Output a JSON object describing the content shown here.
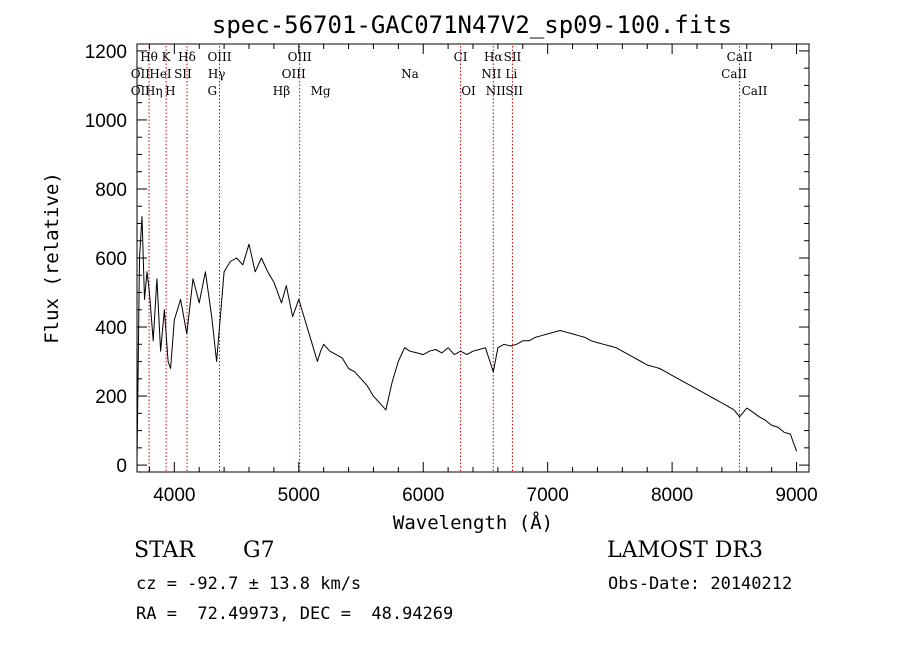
{
  "chart_data": {
    "type": "line",
    "title": "spec-56701-GAC071N47V2_sp09-100.fits",
    "xlabel": "Wavelength (Å)",
    "ylabel": "Flux (relative)",
    "xlim": [
      3700,
      9100
    ],
    "ylim": [
      -20,
      1220
    ],
    "xticks": [
      4000,
      5000,
      6000,
      7000,
      8000,
      9000
    ],
    "xtick_labels": [
      "4000",
      "5000",
      "6000",
      "7000",
      "8000",
      "9000"
    ],
    "yticks": [
      0,
      200,
      400,
      600,
      800,
      1000,
      1200
    ],
    "ytick_labels": [
      "0",
      "200",
      "400",
      "600",
      "800",
      "1000",
      "1200"
    ],
    "grid": false,
    "series": [
      {
        "name": "spectrum",
        "x": [
          3700,
          3720,
          3740,
          3760,
          3780,
          3800,
          3830,
          3860,
          3890,
          3920,
          3950,
          3970,
          4000,
          4050,
          4100,
          4150,
          4200,
          4250,
          4300,
          4340,
          4400,
          4450,
          4500,
          4550,
          4600,
          4650,
          4700,
          4750,
          4800,
          4861,
          4900,
          4950,
          5000,
          5050,
          5100,
          5150,
          5175,
          5200,
          5250,
          5300,
          5350,
          5400,
          5450,
          5500,
          5550,
          5600,
          5650,
          5700,
          5750,
          5800,
          5850,
          5893,
          5950,
          6000,
          6050,
          6100,
          6150,
          6200,
          6250,
          6300,
          6350,
          6400,
          6450,
          6500,
          6563,
          6600,
          6650,
          6700,
          6750,
          6800,
          6850,
          6900,
          6950,
          7000,
          7050,
          7100,
          7150,
          7200,
          7250,
          7300,
          7350,
          7400,
          7450,
          7500,
          7550,
          7600,
          7650,
          7700,
          7750,
          7800,
          7850,
          7900,
          7950,
          8000,
          8050,
          8100,
          8150,
          8200,
          8250,
          8300,
          8350,
          8400,
          8450,
          8498,
          8542,
          8600,
          8662,
          8700,
          8750,
          8800,
          8850,
          8900,
          8950,
          9000
        ],
        "y": [
          10,
          600,
          720,
          480,
          560,
          500,
          360,
          540,
          330,
          450,
          300,
          280,
          420,
          480,
          380,
          540,
          470,
          560,
          430,
          300,
          560,
          590,
          600,
          580,
          640,
          560,
          600,
          560,
          530,
          470,
          520,
          430,
          480,
          420,
          360,
          300,
          330,
          350,
          330,
          320,
          310,
          280,
          270,
          250,
          230,
          200,
          180,
          160,
          240,
          300,
          340,
          330,
          325,
          320,
          330,
          335,
          325,
          340,
          320,
          330,
          320,
          330,
          335,
          340,
          270,
          340,
          350,
          345,
          350,
          360,
          360,
          370,
          375,
          380,
          385,
          390,
          385,
          380,
          375,
          370,
          360,
          355,
          350,
          345,
          340,
          330,
          320,
          310,
          300,
          290,
          285,
          280,
          270,
          260,
          250,
          240,
          230,
          220,
          210,
          200,
          190,
          180,
          170,
          160,
          140,
          165,
          150,
          140,
          130,
          115,
          110,
          95,
          90,
          40
        ]
      }
    ],
    "spectral_lines": [
      {
        "label": "Hθ",
        "x": 3797,
        "row": 1
      },
      {
        "label": "K",
        "x": 3934,
        "row": 1
      },
      {
        "label": "Hδ",
        "x": 4102,
        "row": 1
      },
      {
        "label": "OIII",
        "x": 4363,
        "row": 1
      },
      {
        "label": "OIII",
        "x": 5007,
        "row": 1
      },
      {
        "label": "CI",
        "x": 6300,
        "row": 1
      },
      {
        "label": "Hα",
        "x": 6563,
        "row": 1
      },
      {
        "label": "SII",
        "x": 6717,
        "row": 1
      },
      {
        "label": "CaII",
        "x": 8542,
        "row": 1
      },
      {
        "label": "OII",
        "x": 3727,
        "row": 2
      },
      {
        "label": "HeI",
        "x": 3889,
        "row": 2
      },
      {
        "label": "SII",
        "x": 4069,
        "row": 2
      },
      {
        "label": "Hγ",
        "x": 4340,
        "row": 2
      },
      {
        "label": "OIII",
        "x": 4959,
        "row": 2
      },
      {
        "label": "Na",
        "x": 5893,
        "row": 2
      },
      {
        "label": "NII",
        "x": 6548,
        "row": 2
      },
      {
        "label": "Li",
        "x": 6708,
        "row": 2
      },
      {
        "label": "CaII",
        "x": 8498,
        "row": 2
      },
      {
        "label": "OII",
        "x": 3727,
        "row": 3
      },
      {
        "label": "Hη",
        "x": 3835,
        "row": 3
      },
      {
        "label": "H",
        "x": 3968,
        "row": 3
      },
      {
        "label": "G",
        "x": 4305,
        "row": 3
      },
      {
        "label": "Hβ",
        "x": 4861,
        "row": 3
      },
      {
        "label": "Mg",
        "x": 5175,
        "row": 3
      },
      {
        "label": "OI",
        "x": 6364,
        "row": 3
      },
      {
        "label": "NII",
        "x": 6583,
        "row": 3
      },
      {
        "label": "SII",
        "x": 6731,
        "row": 3
      },
      {
        "label": "CaII",
        "x": 8662,
        "row": 3
      }
    ]
  },
  "info": {
    "class_label": "STAR",
    "subclass": "G7",
    "survey": "LAMOST DR3",
    "cz": "cz = -92.7 ± 13.8 km/s",
    "obs_date": "Obs-Date: 20140212",
    "coords": "RA =  72.49973, DEC =  48.94269"
  }
}
